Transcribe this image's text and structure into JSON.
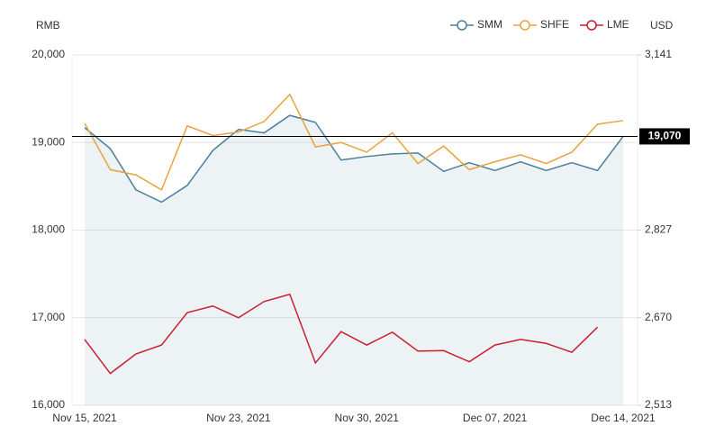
{
  "chart_data": {
    "type": "line",
    "y_axis_label": "RMB",
    "y2_axis_label": "USD",
    "categories": [
      "Nov 15, 2021",
      null,
      null,
      null,
      null,
      null,
      "Nov 23, 2021",
      null,
      null,
      null,
      null,
      "Nov 30, 2021",
      null,
      null,
      null,
      null,
      "Dec 07, 2021",
      null,
      null,
      null,
      null,
      "Dec 14, 2021"
    ],
    "series": [
      {
        "name": "SMM",
        "color": "#4a7f9e",
        "area": true,
        "values": [
          19170,
          18930,
          18460,
          18320,
          18510,
          18910,
          19150,
          19110,
          19310,
          19230,
          18800,
          18840,
          18870,
          18880,
          18670,
          18770,
          18680,
          18780,
          18680,
          18770,
          18680,
          19070
        ]
      },
      {
        "name": "SHFE",
        "color": "#e8a33d",
        "values": [
          19220,
          18690,
          18630,
          18460,
          19190,
          19080,
          19120,
          19240,
          19550,
          18950,
          19000,
          18890,
          19110,
          18760,
          18960,
          18690,
          18780,
          18860,
          18760,
          18890,
          19210,
          19250
        ]
      },
      {
        "name": "LME",
        "color": "#c8202f",
        "axis": "y2",
        "values": [
          2631,
          2570,
          2605,
          2621,
          2679,
          2691,
          2670,
          2699,
          2712,
          2589,
          2645,
          2621,
          2644,
          2610,
          2611,
          2591,
          2621,
          2631,
          2624,
          2608,
          2653,
          null
        ]
      }
    ],
    "ylim": [
      16000,
      20000
    ],
    "yticks": [
      {
        "value": 16000,
        "label": "16,000"
      },
      {
        "value": 17000,
        "label": "17,000"
      },
      {
        "value": 18000,
        "label": "18,000"
      },
      {
        "value": 19000,
        "label": "19,000"
      },
      {
        "value": 20000,
        "label": "20,000"
      }
    ],
    "y2lim": [
      2513,
      3141
    ],
    "y2ticks": [
      {
        "value": 2513,
        "label": "2,513"
      },
      {
        "value": 2670,
        "label": "2,670"
      },
      {
        "value": 2827,
        "label": "2,827"
      },
      {
        "value": 3141,
        "label": "3,141"
      }
    ],
    "price_line": {
      "value": 19070,
      "label": "19,070",
      "color": "#000000"
    },
    "grid": true,
    "legend": "top-right"
  }
}
